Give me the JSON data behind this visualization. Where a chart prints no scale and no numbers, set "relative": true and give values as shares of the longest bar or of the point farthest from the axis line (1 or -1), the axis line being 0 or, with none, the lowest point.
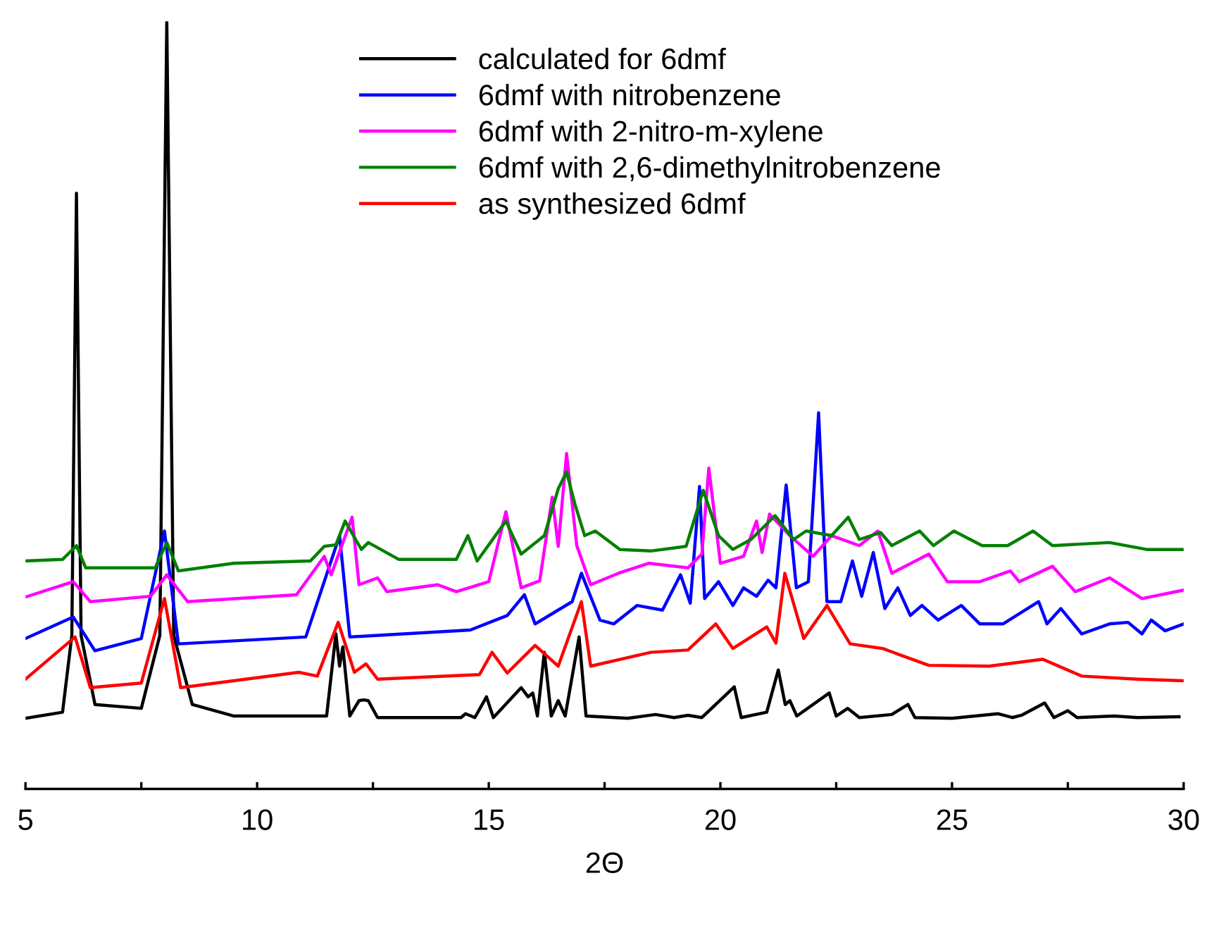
{
  "chart_data": {
    "type": "line",
    "relative": true,
    "xlabel": "2Θ",
    "xlim": [
      5,
      30
    ],
    "xticks": [
      5,
      {
        "value": 7.5,
        "label": null
      },
      10,
      {
        "value": 12.5,
        "label": null
      },
      15,
      {
        "value": 17.5,
        "label": null
      },
      20,
      {
        "value": 22.5,
        "label": null
      },
      25,
      {
        "value": 27.5,
        "label": null
      },
      30
    ],
    "tick_labels": "x",
    "grid": false,
    "legend": "top",
    "marker": "none",
    "line_style": "solid",
    "series": [
      {
        "name": "calculated for 6dmf",
        "color": "#000000",
        "x": [
          5.0,
          5.8,
          6.0,
          6.1,
          6.2,
          6.5,
          7.5,
          7.9,
          8.05,
          8.2,
          8.6,
          9.5,
          11.5,
          11.7,
          11.78,
          11.85,
          12.0,
          12.2,
          12.3,
          12.4,
          12.6,
          14.4,
          14.5,
          14.7,
          14.95,
          15.1,
          15.7,
          15.85,
          15.95,
          16.05,
          16.2,
          16.35,
          16.5,
          16.65,
          16.95,
          17.1,
          18.0,
          18.6,
          19.0,
          19.3,
          19.6,
          20.3,
          20.45,
          21.0,
          21.25,
          21.4,
          21.5,
          21.65,
          22.35,
          22.5,
          22.75,
          23.0,
          23.7,
          24.05,
          24.2,
          25.0,
          26.0,
          26.3,
          26.5,
          27.0,
          27.2,
          27.5,
          27.7,
          28.5,
          29.0,
          29.9
        ],
        "values": [
          0.092,
          0.1,
          0.2,
          0.776,
          0.2,
          0.11,
          0.105,
          0.2,
          1.0,
          0.2,
          0.11,
          0.095,
          0.095,
          0.202,
          0.16,
          0.185,
          0.095,
          0.115,
          0.116,
          0.115,
          0.093,
          0.093,
          0.098,
          0.093,
          0.12,
          0.093,
          0.132,
          0.12,
          0.125,
          0.095,
          0.178,
          0.095,
          0.115,
          0.095,
          0.198,
          0.095,
          0.092,
          0.097,
          0.093,
          0.096,
          0.093,
          0.133,
          0.093,
          0.1,
          0.155,
          0.11,
          0.115,
          0.095,
          0.125,
          0.095,
          0.105,
          0.093,
          0.097,
          0.11,
          0.093,
          0.092,
          0.098,
          0.093,
          0.096,
          0.112,
          0.093,
          0.102,
          0.093,
          0.095,
          0.093,
          0.094
        ]
      },
      {
        "name": "6dmf with nitrobenzene",
        "color": "#0000ff",
        "x": [
          5.0,
          6.03,
          6.5,
          7.5,
          8.0,
          8.3,
          11.05,
          11.78,
          12.0,
          14.6,
          15.4,
          15.77,
          16.0,
          16.8,
          17.0,
          17.4,
          17.7,
          18.2,
          18.75,
          19.14,
          19.35,
          19.55,
          19.66,
          19.96,
          20.27,
          20.5,
          20.78,
          21.03,
          21.2,
          21.42,
          21.64,
          21.9,
          22.12,
          22.3,
          22.6,
          22.85,
          23.05,
          23.3,
          23.55,
          23.83,
          24.1,
          24.35,
          24.7,
          25.2,
          25.6,
          26.1,
          26.87,
          27.05,
          27.35,
          27.8,
          28.4,
          28.8,
          29.1,
          29.3,
          29.6,
          30.0
        ],
        "values": [
          0.196,
          0.224,
          0.18,
          0.196,
          0.336,
          0.189,
          0.198,
          0.33,
          0.198,
          0.207,
          0.226,
          0.253,
          0.215,
          0.244,
          0.281,
          0.22,
          0.215,
          0.239,
          0.233,
          0.279,
          0.242,
          0.394,
          0.248,
          0.27,
          0.239,
          0.262,
          0.251,
          0.272,
          0.262,
          0.396,
          0.262,
          0.27,
          0.49,
          0.244,
          0.244,
          0.297,
          0.251,
          0.308,
          0.235,
          0.262,
          0.226,
          0.239,
          0.22,
          0.239,
          0.215,
          0.215,
          0.244,
          0.215,
          0.235,
          0.202,
          0.215,
          0.217,
          0.202,
          0.22,
          0.206,
          0.215
        ]
      },
      {
        "name": "6dmf with 2-nitro-m-xylene",
        "color": "#ff00ff",
        "x": [
          5.0,
          6.03,
          6.4,
          7.7,
          8.05,
          8.5,
          10.85,
          11.45,
          11.6,
          12.05,
          12.2,
          12.6,
          12.8,
          13.9,
          14.3,
          15.0,
          15.37,
          15.7,
          16.1,
          16.37,
          16.5,
          16.68,
          16.9,
          17.2,
          17.8,
          18.45,
          19.3,
          19.6,
          19.75,
          20.0,
          20.5,
          20.78,
          20.9,
          21.06,
          21.5,
          22.0,
          22.4,
          23.0,
          23.4,
          23.7,
          24.5,
          24.9,
          25.6,
          26.26,
          26.45,
          27.17,
          27.66,
          28.4,
          29.1,
          30.0
        ],
        "values": [
          0.25,
          0.27,
          0.244,
          0.251,
          0.279,
          0.244,
          0.253,
          0.303,
          0.279,
          0.354,
          0.266,
          0.275,
          0.257,
          0.266,
          0.257,
          0.27,
          0.361,
          0.262,
          0.271,
          0.38,
          0.316,
          0.437,
          0.317,
          0.266,
          0.281,
          0.294,
          0.288,
          0.306,
          0.418,
          0.294,
          0.303,
          0.349,
          0.308,
          0.358,
          0.33,
          0.303,
          0.33,
          0.317,
          0.336,
          0.281,
          0.306,
          0.27,
          0.27,
          0.284,
          0.27,
          0.29,
          0.257,
          0.275,
          0.248,
          0.259
        ]
      },
      {
        "name": "6dmf with 2,6-dimethylnitrobenzene",
        "color": "#008000",
        "x": [
          5.0,
          5.8,
          6.1,
          6.3,
          7.8,
          8.05,
          8.3,
          9.5,
          11.15,
          11.45,
          11.7,
          11.9,
          12.25,
          12.4,
          13.06,
          14.3,
          14.55,
          14.75,
          15.37,
          15.7,
          16.2,
          16.5,
          16.68,
          16.86,
          17.07,
          17.3,
          17.83,
          18.5,
          19.26,
          19.63,
          19.96,
          20.27,
          20.66,
          21.18,
          21.58,
          21.85,
          22.4,
          22.76,
          23.0,
          23.46,
          23.7,
          24.3,
          24.6,
          25.04,
          25.65,
          26.2,
          26.75,
          27.17,
          28.4,
          29.2,
          30.0
        ],
        "values": [
          0.297,
          0.299,
          0.317,
          0.288,
          0.288,
          0.321,
          0.284,
          0.294,
          0.297,
          0.316,
          0.318,
          0.349,
          0.312,
          0.321,
          0.299,
          0.299,
          0.33,
          0.297,
          0.349,
          0.306,
          0.33,
          0.391,
          0.413,
          0.371,
          0.33,
          0.336,
          0.312,
          0.31,
          0.316,
          0.389,
          0.33,
          0.312,
          0.325,
          0.356,
          0.325,
          0.336,
          0.33,
          0.354,
          0.325,
          0.334,
          0.317,
          0.336,
          0.317,
          0.336,
          0.317,
          0.317,
          0.336,
          0.317,
          0.321,
          0.312,
          0.312
        ]
      },
      {
        "name": "as synthesized 6dmf",
        "color": "#ff0000",
        "x": [
          5.0,
          6.07,
          6.4,
          7.5,
          8.0,
          8.35,
          10.9,
          11.3,
          11.75,
          12.1,
          12.35,
          12.6,
          14.8,
          15.07,
          15.4,
          16.0,
          16.5,
          17.0,
          17.2,
          18.5,
          19.3,
          19.9,
          20.27,
          21.0,
          21.2,
          21.39,
          21.8,
          22.3,
          22.8,
          23.5,
          24.5,
          25.8,
          26.96,
          27.8,
          29.0,
          30.0
        ],
        "values": [
          0.143,
          0.198,
          0.132,
          0.138,
          0.248,
          0.132,
          0.152,
          0.147,
          0.217,
          0.152,
          0.163,
          0.143,
          0.149,
          0.178,
          0.151,
          0.187,
          0.16,
          0.244,
          0.16,
          0.178,
          0.181,
          0.215,
          0.183,
          0.211,
          0.19,
          0.281,
          0.196,
          0.239,
          0.189,
          0.183,
          0.161,
          0.16,
          0.169,
          0.147,
          0.143,
          0.141
        ]
      }
    ]
  }
}
